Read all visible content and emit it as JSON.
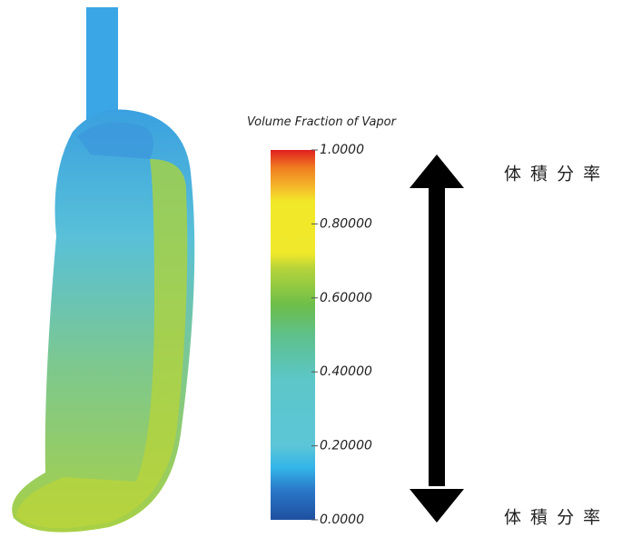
{
  "colorbar": {
    "title": "Volume Fraction of Vapor",
    "range": [
      0,
      1
    ],
    "ticks": [
      {
        "value": 0,
        "label": "0.0000"
      },
      {
        "value": 0.2,
        "label": "0.20000"
      },
      {
        "value": 0.4,
        "label": "0.40000"
      },
      {
        "value": 0.6,
        "label": "0.60000"
      },
      {
        "value": 0.8,
        "label": "0.80000"
      },
      {
        "value": 1,
        "label": "1.0000"
      }
    ]
  },
  "annotations": {
    "top": "体 積 分 率",
    "bottom": "体 積 分 率"
  }
}
